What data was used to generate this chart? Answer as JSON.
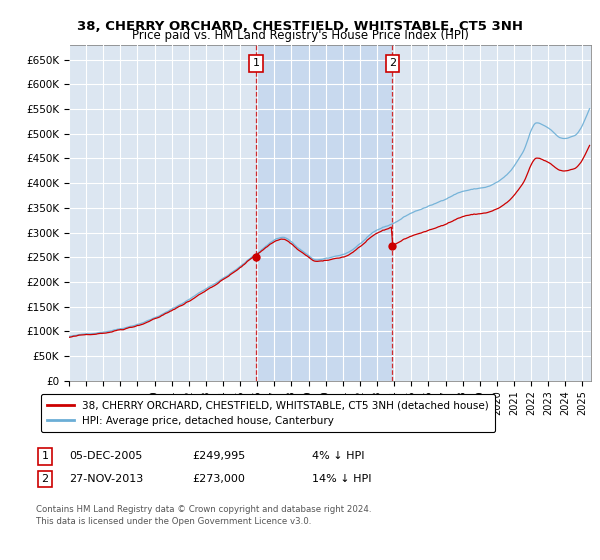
{
  "title": "38, CHERRY ORCHARD, CHESTFIELD, WHITSTABLE, CT5 3NH",
  "subtitle": "Price paid vs. HM Land Registry's House Price Index (HPI)",
  "yticks": [
    0,
    50000,
    100000,
    150000,
    200000,
    250000,
    300000,
    350000,
    400000,
    450000,
    500000,
    550000,
    600000,
    650000
  ],
  "xlim_start": 1995.0,
  "xlim_end": 2025.5,
  "ylim": [
    0,
    680000
  ],
  "legend_entries": [
    "38, CHERRY ORCHARD, CHESTFIELD, WHITSTABLE, CT5 3NH (detached house)",
    "HPI: Average price, detached house, Canterbury"
  ],
  "sale1_date": 2005.92,
  "sale1_price": 249995,
  "sale2_date": 2013.9,
  "sale2_price": 273000,
  "footer": "Contains HM Land Registry data © Crown copyright and database right 2024.\nThis data is licensed under the Open Government Licence v3.0.",
  "hpi_color": "#6baed6",
  "sale_color": "#cc0000",
  "plot_bg": "#dce6f1",
  "highlight_color": "#c8d9ee",
  "grid_color": "#ffffff"
}
